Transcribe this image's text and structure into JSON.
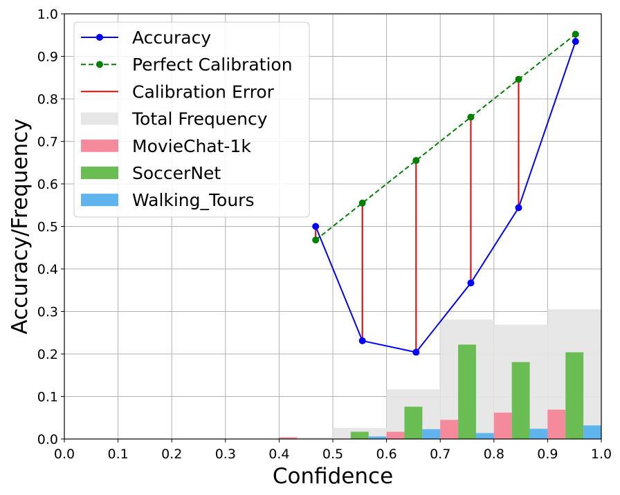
{
  "chart_data": {
    "type": "bar+line",
    "xlabel": "Confidence",
    "ylabel": "Accuracy/Frequency",
    "xlim": [
      0.0,
      1.0
    ],
    "ylim": [
      0.0,
      1.0
    ],
    "xticks": [
      "0.0",
      "0.1",
      "0.2",
      "0.3",
      "0.4",
      "0.5",
      "0.6",
      "0.7",
      "0.8",
      "0.9",
      "1.0"
    ],
    "yticks": [
      "0.0",
      "0.1",
      "0.2",
      "0.3",
      "0.4",
      "0.5",
      "0.6",
      "0.7",
      "0.8",
      "0.9",
      "1.0"
    ],
    "grid": true,
    "legend_position": "top-left",
    "bins": [
      0.4,
      0.5,
      0.6,
      0.7,
      0.8,
      0.9
    ],
    "bin_width": 0.1,
    "total_frequency": [
      0.004,
      0.026,
      0.117,
      0.281,
      0.269,
      0.305
    ],
    "dataset_frequencies": [
      {
        "name": "MovieChat-1k",
        "color": "#f48a9b",
        "values": [
          0.004,
          0.001,
          0.017,
          0.045,
          0.062,
          0.069
        ]
      },
      {
        "name": "SoccerNet",
        "color": "#6abd53",
        "values": [
          0.0,
          0.017,
          0.076,
          0.222,
          0.181,
          0.204
        ]
      },
      {
        "name": "Walking_Tours",
        "color": "#60b4ee",
        "values": [
          0.0,
          0.006,
          0.023,
          0.014,
          0.024,
          0.032
        ]
      }
    ],
    "total_color": "#e6e6e6",
    "confidence": [
      0.468,
      0.555,
      0.655,
      0.757,
      0.846,
      0.952
    ],
    "accuracy": [
      0.5,
      0.231,
      0.204,
      0.367,
      0.544,
      0.935
    ],
    "accuracy_color": "#0000ff",
    "perfect_color": "#008000",
    "error_color": "#e00000",
    "legend": [
      {
        "label": "Accuracy",
        "kind": "line-marker",
        "color": "#0000ff"
      },
      {
        "label": "Perfect Calibration",
        "kind": "dashed-marker",
        "color": "#008000"
      },
      {
        "label": "Calibration Error",
        "kind": "line",
        "color": "#e00000"
      },
      {
        "label": "Total Frequency",
        "kind": "patch",
        "color": "#e6e6e6"
      },
      {
        "label": "MovieChat-1k",
        "kind": "patch",
        "color": "#f48a9b"
      },
      {
        "label": "SoccerNet",
        "kind": "patch",
        "color": "#6abd53"
      },
      {
        "label": "Walking_Tours",
        "kind": "patch",
        "color": "#60b4ee"
      }
    ]
  }
}
